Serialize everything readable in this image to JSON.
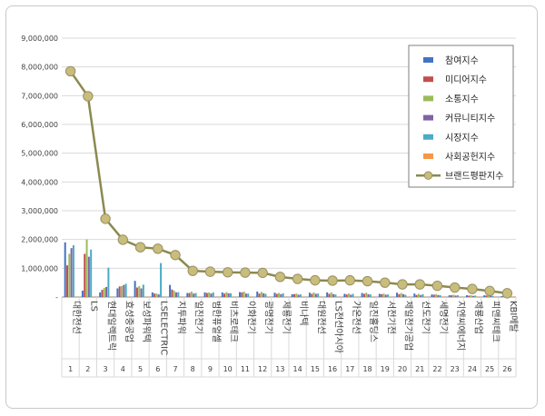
{
  "chart_data": {
    "type": "bar",
    "ylim": [
      0,
      9000000
    ],
    "yticks": [
      0,
      1000000,
      2000000,
      3000000,
      4000000,
      5000000,
      6000000,
      7000000,
      8000000,
      9000000
    ],
    "ytick_labels": [
      "-",
      "1,000,000",
      "2,000,000",
      "3,000,000",
      "4,000,000",
      "5,000,000",
      "6,000,000",
      "7,000,000",
      "8,000,000",
      "9,000,000"
    ],
    "grid": true,
    "legend_position": "top-right",
    "categories": [
      "대한전선",
      "LS",
      "현대일렉트릭",
      "효성중공업",
      "보성파워텍",
      "LSELECTRIC",
      "지투파워",
      "일진전기",
      "범한퓨얼셀",
      "비츠로테크",
      "이화전기",
      "광명전기",
      "제룡전기",
      "비나텍",
      "대원전선",
      "LS전선아시아",
      "가온전선",
      "일진홀딩스",
      "서전기전",
      "제일전기공업",
      "선도전기",
      "세명전기",
      "지엔씨에너지",
      "제룡산업",
      "피앤씨테크",
      "KBI메탈"
    ],
    "ranks": [
      "1",
      "2",
      "3",
      "4",
      "5",
      "6",
      "7",
      "8",
      "9",
      "10",
      "11",
      "12",
      "13",
      "14",
      "15",
      "16",
      "17",
      "18",
      "19",
      "20",
      "21",
      "22",
      "23",
      "24",
      "25",
      "26"
    ],
    "series": [
      {
        "name": "참여지수",
        "color": "#4472c4",
        "values": [
          1900000,
          220000,
          160000,
          300000,
          560000,
          160000,
          420000,
          140000,
          160000,
          160000,
          170000,
          190000,
          150000,
          100000,
          150000,
          160000,
          110000,
          140000,
          110000,
          150000,
          120000,
          90000,
          60000,
          60000,
          60000,
          30000
        ]
      },
      {
        "name": "미디어지수",
        "color": "#c0504d",
        "values": [
          1100000,
          1500000,
          250000,
          370000,
          330000,
          120000,
          260000,
          140000,
          140000,
          120000,
          160000,
          120000,
          110000,
          100000,
          110000,
          110000,
          90000,
          110000,
          100000,
          100000,
          70000,
          80000,
          60000,
          50000,
          50000,
          20000
        ]
      },
      {
        "name": "소통지수",
        "color": "#9bbb59",
        "values": [
          1500000,
          2000000,
          320000,
          380000,
          380000,
          120000,
          220000,
          190000,
          160000,
          170000,
          190000,
          180000,
          140000,
          120000,
          160000,
          160000,
          120000,
          150000,
          120000,
          140000,
          110000,
          100000,
          80000,
          60000,
          60000,
          30000
        ]
      },
      {
        "name": "커뮤니티지수",
        "color": "#8064a2",
        "values": [
          1700000,
          1400000,
          350000,
          420000,
          300000,
          90000,
          160000,
          120000,
          120000,
          130000,
          120000,
          130000,
          100000,
          80000,
          110000,
          100000,
          80000,
          100000,
          80000,
          100000,
          70000,
          70000,
          50000,
          40000,
          40000,
          20000
        ]
      },
      {
        "name": "시장지수",
        "color": "#4bacc6",
        "values": [
          1800000,
          1650000,
          1020000,
          460000,
          430000,
          1180000,
          170000,
          140000,
          160000,
          130000,
          120000,
          110000,
          130000,
          90000,
          120000,
          90000,
          110000,
          90000,
          90000,
          80000,
          100000,
          60000,
          60000,
          50000,
          40000,
          20000
        ]
      },
      {
        "name": "사회공헌지수",
        "color": "#f79646",
        "values": [
          20000,
          20000,
          20000,
          20000,
          20000,
          0,
          20000,
          20000,
          20000,
          20000,
          20000,
          20000,
          20000,
          20000,
          20000,
          20000,
          20000,
          20000,
          20000,
          20000,
          20000,
          20000,
          20000,
          20000,
          20000,
          20000
        ]
      }
    ],
    "line_series": {
      "name": "브랜드평판지수",
      "color": "#8b8a4f",
      "marker_color": "#c8bd7a",
      "values": [
        7850000,
        6980000,
        2720000,
        1990000,
        1730000,
        1680000,
        1460000,
        910000,
        880000,
        860000,
        850000,
        840000,
        700000,
        630000,
        580000,
        570000,
        580000,
        550000,
        500000,
        440000,
        440000,
        390000,
        330000,
        280000,
        210000,
        130000
      ]
    }
  }
}
